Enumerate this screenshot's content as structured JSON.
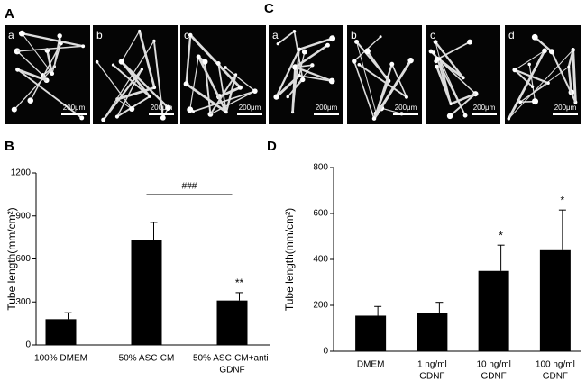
{
  "panels": {
    "A": {
      "label": "A",
      "images": [
        {
          "label": "a",
          "scale": "200μm"
        },
        {
          "label": "b",
          "scale": "200μm"
        },
        {
          "label": "c",
          "scale": "200μm"
        }
      ]
    },
    "C": {
      "label": "C",
      "images": [
        {
          "label": "a",
          "scale": "200μm"
        },
        {
          "label": "b",
          "scale": "200μm"
        },
        {
          "label": "c",
          "scale": "200μm"
        },
        {
          "label": "d",
          "scale": "200μm"
        }
      ]
    }
  },
  "chart_data": [
    {
      "type": "bar",
      "panel_label": "B",
      "ylabel": "Tube length(mm/cm²)",
      "categories": [
        [
          "100% DMEM"
        ],
        [
          "50% ASC-CM"
        ],
        [
          "50% ASC-CM+anti-",
          "GDNF"
        ]
      ],
      "values": [
        180,
        730,
        310
      ],
      "errors": [
        45,
        125,
        55
      ],
      "color": "#000000",
      "significance": [
        null,
        null,
        "**"
      ],
      "comparison_label": "###",
      "ylim": [
        0,
        1200
      ],
      "yticks": [
        0,
        300,
        600,
        900,
        1200
      ]
    },
    {
      "type": "bar",
      "panel_label": "D",
      "ylabel": "Tube length(mm/cm²)",
      "categories": [
        [
          "DMEM"
        ],
        [
          "1 ng/ml",
          "GDNF"
        ],
        [
          "10 ng/ml",
          "GDNF"
        ],
        [
          "100 ng/ml",
          "GDNF"
        ]
      ],
      "values": [
        155,
        168,
        350,
        440
      ],
      "errors": [
        40,
        45,
        112,
        175
      ],
      "color": "#000000",
      "significance": [
        null,
        null,
        "*",
        "*"
      ],
      "ylim": [
        0,
        800
      ],
      "yticks": [
        0,
        200,
        400,
        600,
        800
      ]
    }
  ]
}
